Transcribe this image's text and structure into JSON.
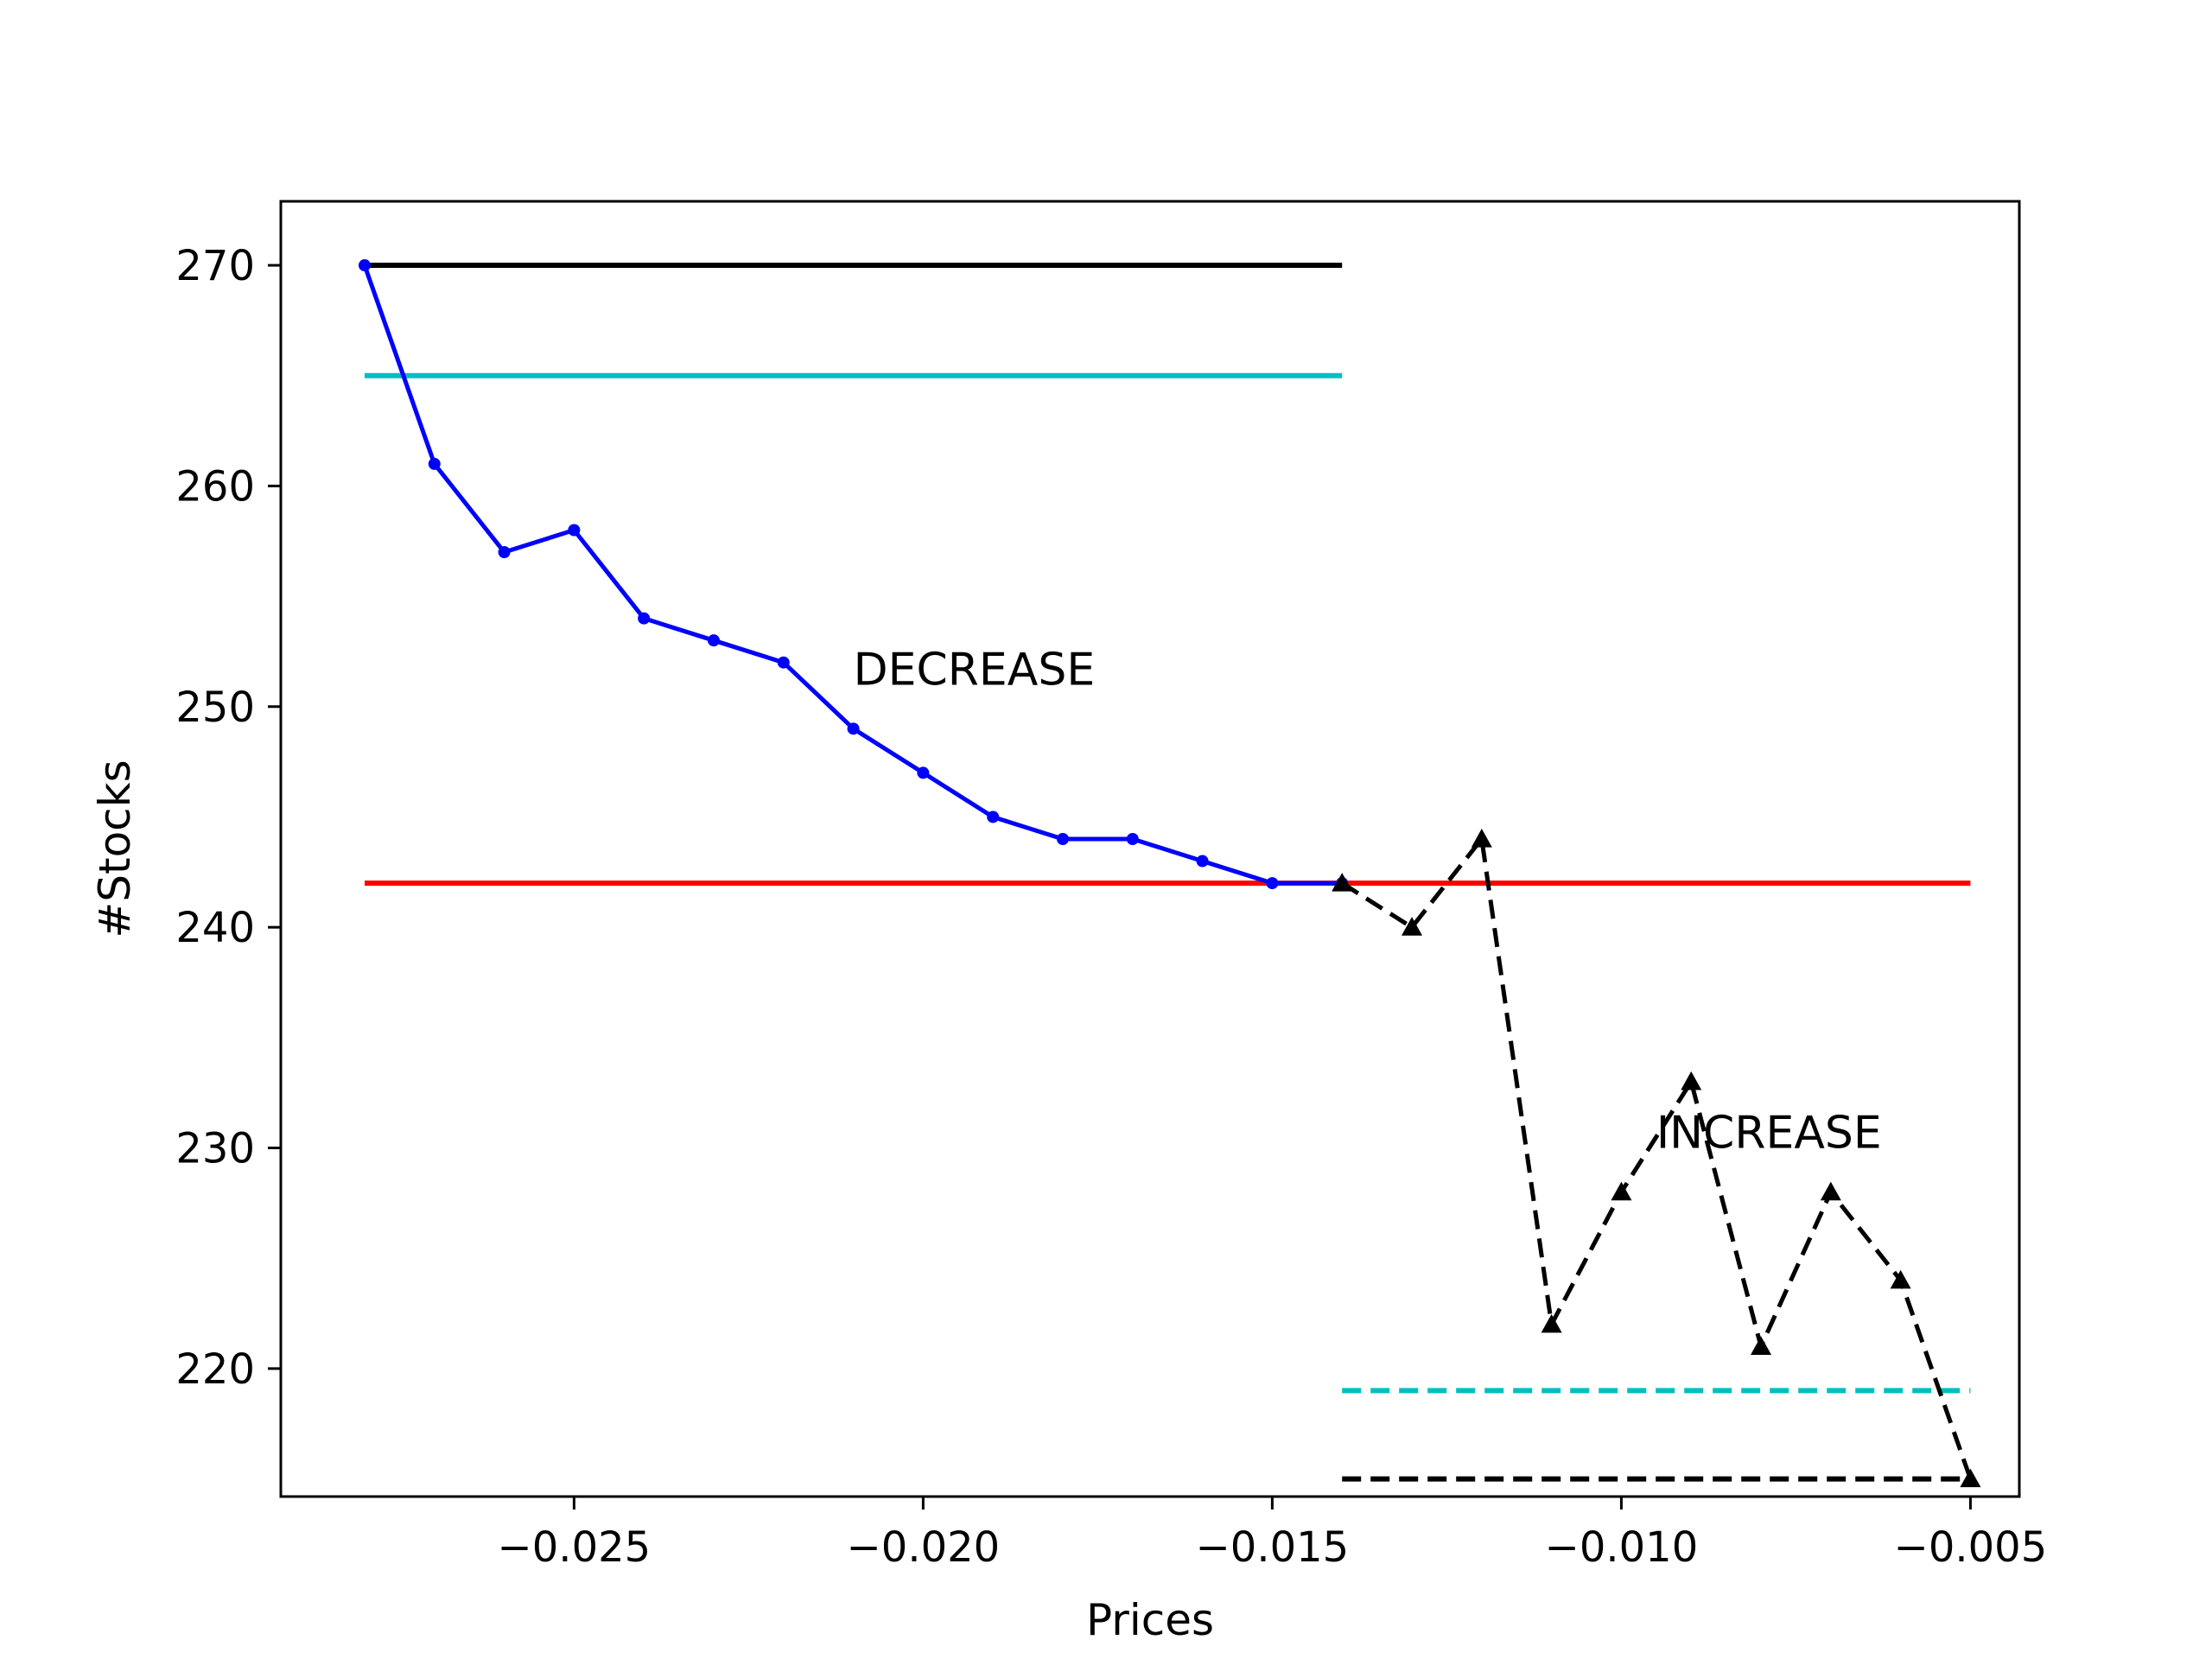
{
  "chart_data": {
    "type": "line",
    "title": "",
    "xlabel": "Prices",
    "ylabel": "#Stocks",
    "xlim": [
      -0.0292,
      -0.0043
    ],
    "ylim": [
      214.2,
      272.9
    ],
    "x_ticks": [
      -0.025,
      -0.02,
      -0.015,
      -0.01,
      -0.005
    ],
    "x_tick_labels": [
      "−0.025",
      "−0.020",
      "−0.015",
      "−0.010",
      "−0.005"
    ],
    "y_ticks": [
      220,
      230,
      240,
      250,
      260,
      270
    ],
    "y_tick_labels": [
      "220",
      "230",
      "240",
      "250",
      "260",
      "270"
    ],
    "grid": false,
    "legend": "none",
    "series": [
      {
        "style": "solid",
        "color": "#0000ff",
        "marker": "dot",
        "x": [
          -0.028,
          -0.027,
          -0.026,
          -0.025,
          -0.024,
          -0.023,
          -0.022,
          -0.021,
          -0.02,
          -0.019,
          -0.018,
          -0.017,
          -0.016,
          -0.015,
          -0.014
        ],
        "values": [
          270,
          261,
          257,
          258,
          254,
          253,
          252,
          249,
          247,
          245,
          244,
          244,
          243,
          242,
          242
        ]
      },
      {
        "style": "dashed",
        "color": "#000000",
        "marker": "triangle",
        "x": [
          -0.014,
          -0.013,
          -0.012,
          -0.011,
          -0.01,
          -0.009,
          -0.008,
          -0.007,
          -0.006,
          -0.005
        ],
        "values": [
          242,
          240,
          244,
          222,
          228,
          233,
          221,
          228,
          224,
          215
        ]
      }
    ],
    "reference_lines": [
      {
        "y": 270,
        "x_from": -0.028,
        "x_to": -0.014,
        "color": "#000000",
        "style": "solid"
      },
      {
        "y": 265,
        "x_from": -0.028,
        "x_to": -0.014,
        "color": "#00bfbf",
        "style": "solid"
      },
      {
        "y": 242,
        "x_from": -0.028,
        "x_to": -0.005,
        "color": "#ff0000",
        "style": "solid"
      },
      {
        "y": 219,
        "x_from": -0.014,
        "x_to": -0.005,
        "color": "#00bfbf",
        "style": "dashed"
      },
      {
        "y": 215,
        "x_from": -0.014,
        "x_to": -0.005,
        "color": "#000000",
        "style": "dashed"
      }
    ],
    "annotations": [
      {
        "text": "DECREASE",
        "x": -0.021,
        "y": 251
      },
      {
        "text": "INCREASE",
        "x": -0.0095,
        "y": 230
      }
    ]
  }
}
